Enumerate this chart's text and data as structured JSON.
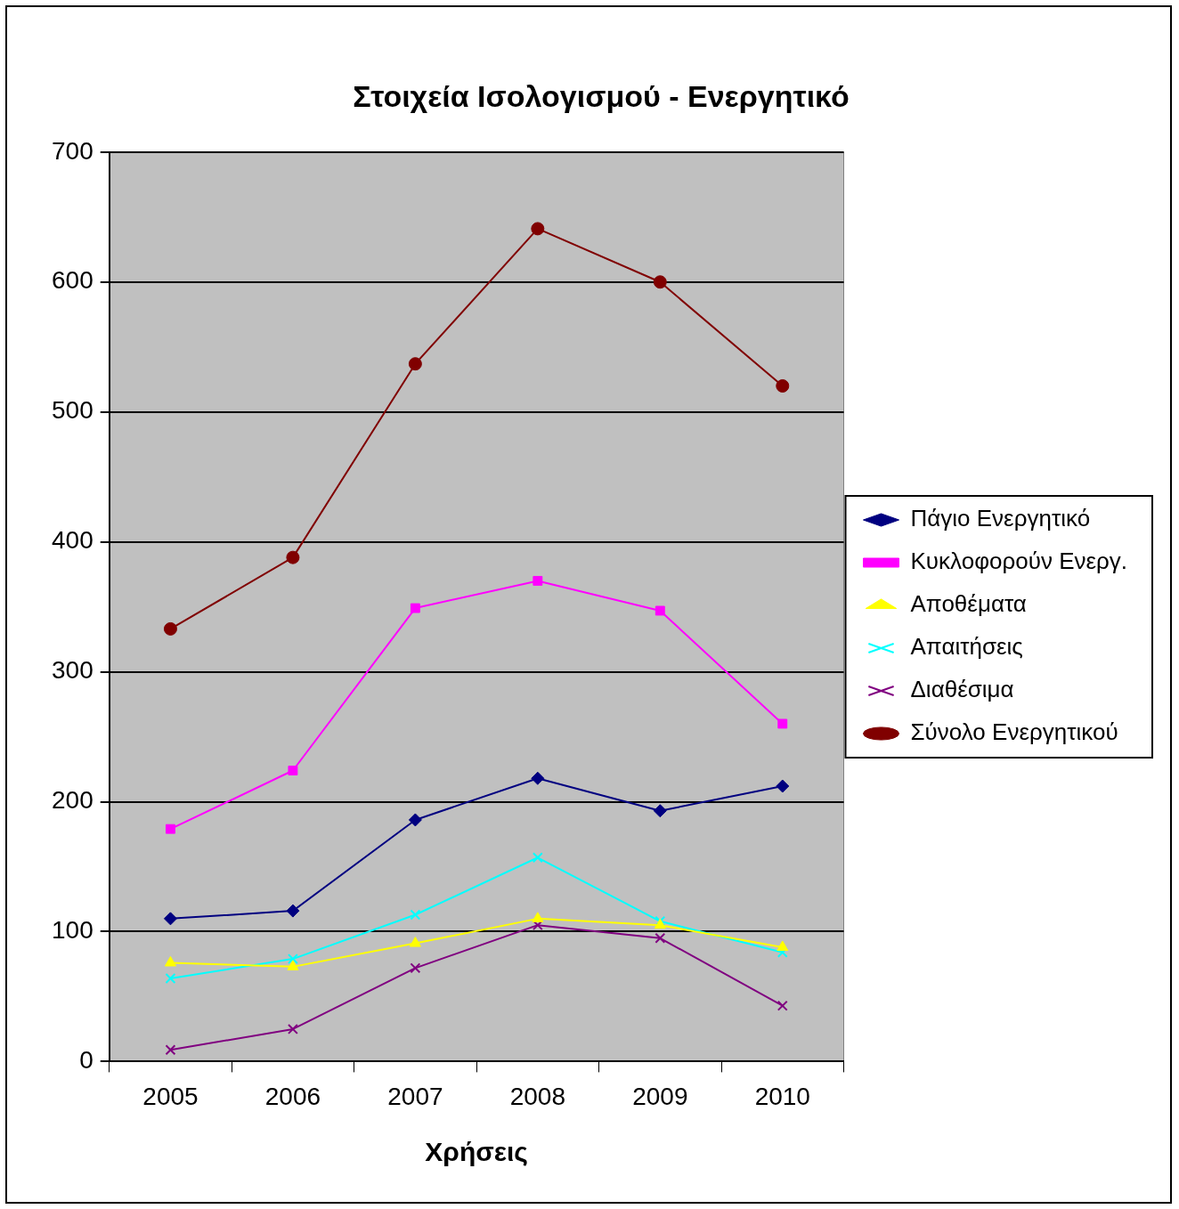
{
  "chart_data": {
    "type": "line",
    "title": "Στοιχεία Ισολογισμού - Ενεργητικό",
    "xlabel": "Χρήσεις",
    "categories": [
      "2005",
      "2006",
      "2007",
      "2008",
      "2009",
      "2010"
    ],
    "series": [
      {
        "name": "Πάγιο Ενεργητικό",
        "color": "#000080",
        "marker": "diamond",
        "values": [
          110,
          116,
          186,
          218,
          193,
          212
        ]
      },
      {
        "name": "Κυκλοφορούν Ενεργ.",
        "color": "#ff00ff",
        "marker": "square",
        "values": [
          179,
          224,
          349,
          370,
          347,
          260
        ]
      },
      {
        "name": "Αποθέματα",
        "color": "#ffff00",
        "marker": "triangle",
        "values": [
          76,
          73,
          91,
          110,
          105,
          88
        ]
      },
      {
        "name": "Απαιτήσεις",
        "color": "#00ffff",
        "marker": "cross",
        "values": [
          64,
          79,
          113,
          157,
          108,
          84
        ]
      },
      {
        "name": "Διαθέσιμα",
        "color": "#800080",
        "marker": "cross",
        "values": [
          9,
          25,
          72,
          105,
          95,
          43
        ]
      },
      {
        "name": "Σύνολο Ενεργητικού",
        "color": "#800000",
        "marker": "circle",
        "values": [
          333,
          388,
          537,
          641,
          600,
          520
        ]
      }
    ],
    "ylim": [
      0,
      700
    ],
    "yticks": [
      0,
      100,
      200,
      300,
      400,
      500,
      600,
      700
    ],
    "grid": "y",
    "legend": "right",
    "line_style": "solid"
  }
}
